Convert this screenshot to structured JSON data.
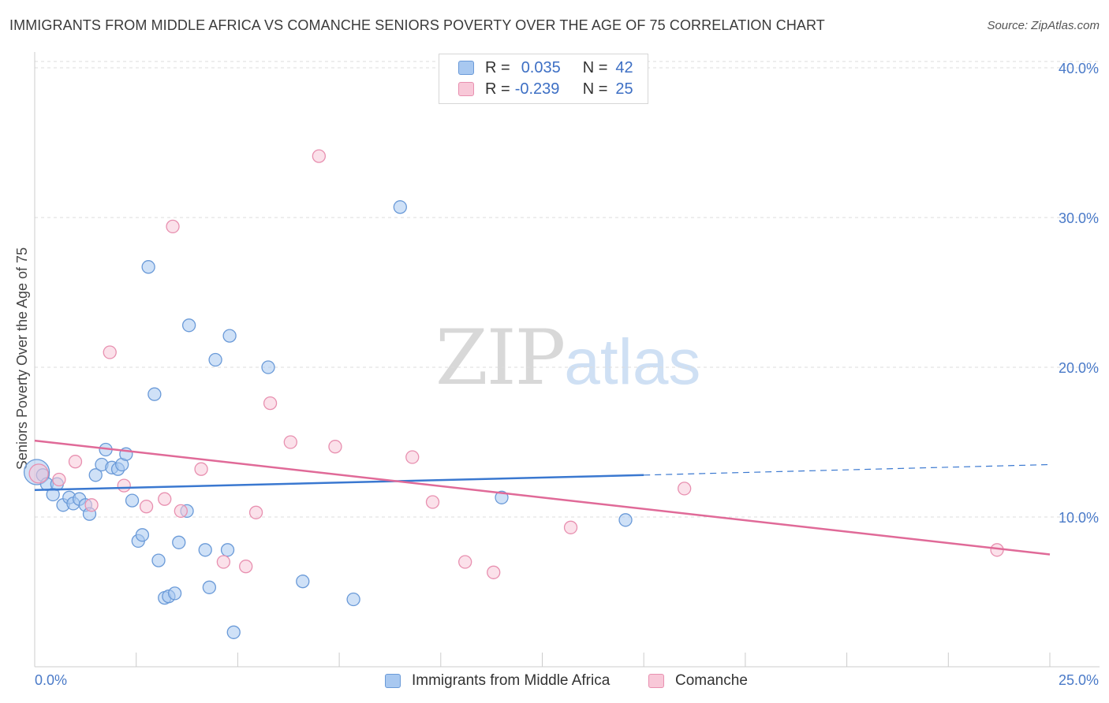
{
  "title": "IMMIGRANTS FROM MIDDLE AFRICA VS COMANCHE SENIORS POVERTY OVER THE AGE OF 75 CORRELATION CHART",
  "source": "Source: ZipAtlas.com",
  "watermark": {
    "zip": "ZIP",
    "atlas": "atlas"
  },
  "legend": {
    "r_label": "R =",
    "n_label": "N =",
    "rows": [
      {
        "r": "0.035",
        "n": "42",
        "color": "#a8c8f0",
        "border": "#6a9ad8"
      },
      {
        "r": "-0.239",
        "n": "25",
        "color": "#f8c8d8",
        "border": "#e890b0"
      }
    ]
  },
  "chart_data": {
    "type": "scatter",
    "ylabel": "Seniors Poverty Over the Age of 75",
    "xlim": [
      0,
      25
    ],
    "ylim": [
      0,
      40
    ],
    "y_ticks": [
      "10.0%",
      "20.0%",
      "30.0%",
      "40.0%"
    ],
    "x_tick_labels": [
      "0.0%",
      "25.0%"
    ],
    "grid": true,
    "legend_position": "top-center",
    "series": [
      {
        "name": "Immigrants from Middle Africa",
        "color": "#6a9ad8",
        "fill": "#a8c8f0",
        "trend": {
          "x": [
            0,
            15,
            25
          ],
          "y": [
            11.8,
            12.8,
            13.5
          ],
          "solid_until": 15
        },
        "points": [
          [
            0.05,
            13.0
          ],
          [
            0.2,
            12.8
          ],
          [
            0.3,
            12.2
          ],
          [
            0.45,
            11.5
          ],
          [
            0.55,
            12.2
          ],
          [
            0.7,
            10.8
          ],
          [
            0.85,
            11.3
          ],
          [
            0.95,
            10.9
          ],
          [
            1.1,
            11.2
          ],
          [
            1.25,
            10.8
          ],
          [
            1.35,
            10.2
          ],
          [
            1.5,
            12.8
          ],
          [
            1.65,
            13.5
          ],
          [
            1.75,
            14.5
          ],
          [
            1.9,
            13.3
          ],
          [
            2.05,
            13.2
          ],
          [
            2.15,
            13.5
          ],
          [
            2.25,
            14.2
          ],
          [
            2.4,
            11.1
          ],
          [
            2.55,
            8.4
          ],
          [
            2.65,
            8.8
          ],
          [
            2.8,
            26.7
          ],
          [
            2.95,
            18.2
          ],
          [
            3.05,
            7.1
          ],
          [
            3.2,
            4.6
          ],
          [
            3.3,
            4.7
          ],
          [
            3.45,
            4.9
          ],
          [
            3.55,
            8.3
          ],
          [
            3.75,
            10.4
          ],
          [
            3.8,
            22.8
          ],
          [
            4.2,
            7.8
          ],
          [
            4.3,
            5.3
          ],
          [
            4.45,
            20.5
          ],
          [
            4.75,
            7.8
          ],
          [
            4.8,
            22.1
          ],
          [
            4.9,
            2.3
          ],
          [
            5.75,
            20.0
          ],
          [
            6.6,
            5.7
          ],
          [
            7.85,
            4.5
          ],
          [
            9.0,
            30.7
          ],
          [
            11.5,
            11.3
          ],
          [
            14.55,
            9.8
          ]
        ]
      },
      {
        "name": "Comanche",
        "color": "#e890b0",
        "fill": "#f8c8d8",
        "trend": {
          "x": [
            0,
            25
          ],
          "y": [
            15.1,
            7.5
          ]
        },
        "points": [
          [
            0.1,
            12.9
          ],
          [
            0.6,
            12.5
          ],
          [
            1.0,
            13.7
          ],
          [
            1.4,
            10.8
          ],
          [
            1.85,
            21.0
          ],
          [
            2.2,
            12.1
          ],
          [
            2.75,
            10.7
          ],
          [
            3.2,
            11.2
          ],
          [
            3.4,
            29.4
          ],
          [
            3.6,
            10.4
          ],
          [
            4.1,
            13.2
          ],
          [
            4.65,
            7.0
          ],
          [
            5.2,
            6.7
          ],
          [
            5.45,
            10.3
          ],
          [
            5.8,
            17.6
          ],
          [
            6.3,
            15.0
          ],
          [
            7.0,
            34.1
          ],
          [
            7.4,
            14.7
          ],
          [
            9.3,
            14.0
          ],
          [
            9.8,
            11.0
          ],
          [
            10.6,
            7.0
          ],
          [
            11.3,
            6.3
          ],
          [
            13.2,
            9.3
          ],
          [
            16.0,
            11.9
          ],
          [
            23.7,
            7.8
          ]
        ]
      }
    ]
  },
  "bottom_legend": [
    {
      "label": "Immigrants from Middle Africa",
      "color": "#a8c8f0",
      "border": "#6a9ad8"
    },
    {
      "label": "Comanche",
      "color": "#f8c8d8",
      "border": "#e890b0"
    }
  ]
}
